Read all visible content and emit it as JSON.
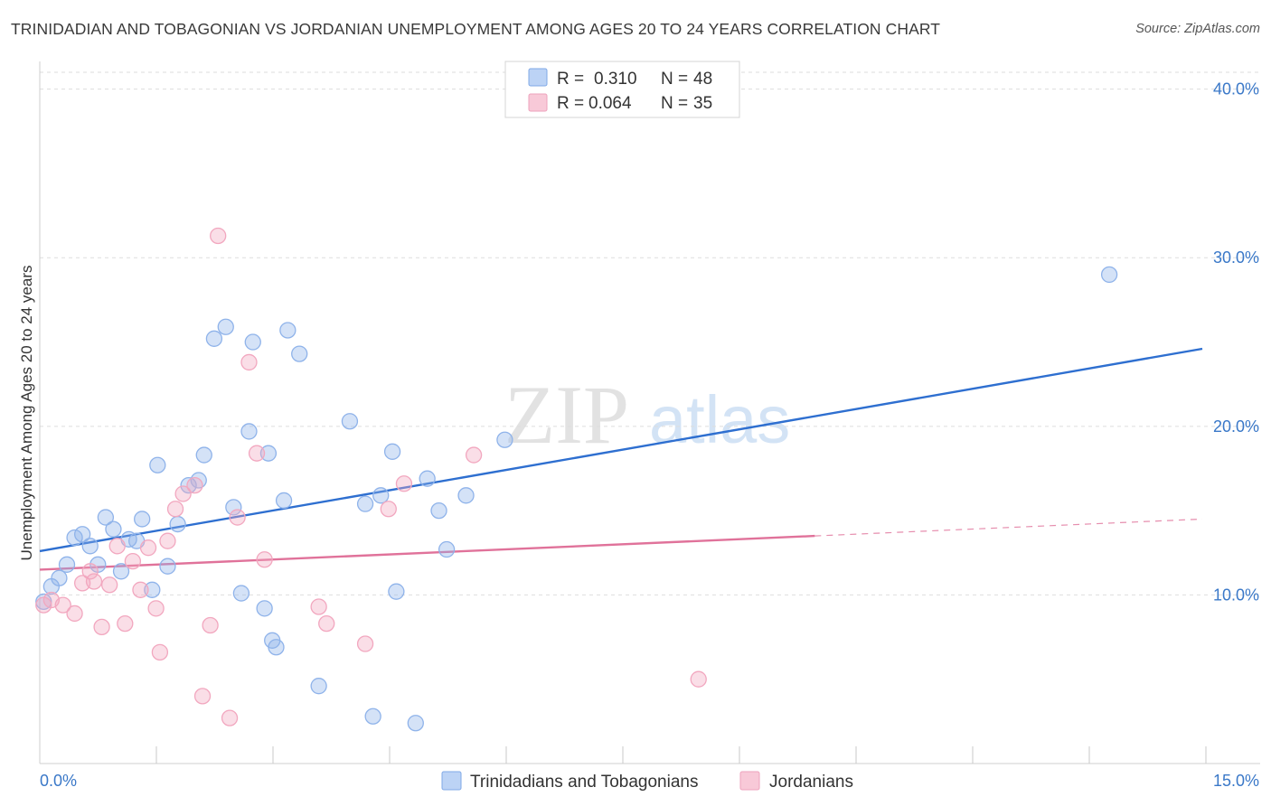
{
  "chart_data": {
    "type": "scatter",
    "title": "TRINIDADIAN AND TOBAGONIAN VS JORDANIAN UNEMPLOYMENT AMONG AGES 20 TO 24 YEARS CORRELATION CHART",
    "source": "Source: ZipAtlas.com",
    "watermark": {
      "zip": "ZIP",
      "atlas": "atlas"
    },
    "xlabel": "",
    "ylabel": "Unemployment Among Ages 20 to 24 years",
    "xlim": [
      0,
      15
    ],
    "ylim": [
      0,
      41
    ],
    "x_tick_labels": [
      {
        "value": 0,
        "label": "0.0%"
      },
      {
        "value": 15,
        "label": "15.0%"
      }
    ],
    "y_tick_labels": [
      {
        "value": 10,
        "label": "10.0%"
      },
      {
        "value": 20,
        "label": "20.0%"
      },
      {
        "value": 30,
        "label": "30.0%"
      },
      {
        "value": 40,
        "label": "40.0%"
      }
    ],
    "grid": true,
    "legend_position": "top-center",
    "stats": [
      {
        "r_label": "R =",
        "r_value": "0.310",
        "n_label": "N =",
        "n_value": "48"
      },
      {
        "r_label": "R =",
        "r_value": "0.064",
        "n_label": "N =",
        "n_value": "35"
      }
    ],
    "series": [
      {
        "name": "Trinidadians and Tobagonians",
        "color": "#8fb3ea",
        "line_color": "#2e6fd0",
        "trend": {
          "x_start": 0,
          "y_start": 12.6,
          "x_end": 15,
          "y_end": 24.6,
          "dashed_from_x": null
        },
        "points": [
          [
            0.05,
            9.6
          ],
          [
            0.15,
            10.5
          ],
          [
            0.25,
            11.0
          ],
          [
            0.35,
            11.8
          ],
          [
            0.45,
            13.4
          ],
          [
            0.55,
            13.6
          ],
          [
            0.65,
            12.9
          ],
          [
            0.75,
            11.8
          ],
          [
            0.85,
            14.6
          ],
          [
            0.95,
            13.9
          ],
          [
            1.05,
            11.4
          ],
          [
            1.15,
            13.3
          ],
          [
            1.25,
            13.2
          ],
          [
            1.32,
            14.5
          ],
          [
            1.45,
            10.3
          ],
          [
            1.52,
            17.7
          ],
          [
            1.65,
            11.7
          ],
          [
            1.78,
            14.2
          ],
          [
            1.92,
            16.5
          ],
          [
            2.05,
            16.8
          ],
          [
            2.12,
            18.3
          ],
          [
            2.25,
            25.2
          ],
          [
            2.4,
            25.9
          ],
          [
            2.5,
            15.2
          ],
          [
            2.6,
            10.1
          ],
          [
            2.7,
            19.7
          ],
          [
            2.75,
            25.0
          ],
          [
            2.9,
            9.2
          ],
          [
            2.95,
            18.4
          ],
          [
            3.0,
            7.3
          ],
          [
            3.05,
            6.9
          ],
          [
            3.15,
            15.6
          ],
          [
            3.2,
            25.7
          ],
          [
            3.35,
            24.3
          ],
          [
            3.6,
            4.6
          ],
          [
            4.0,
            20.3
          ],
          [
            4.2,
            15.4
          ],
          [
            4.3,
            2.8
          ],
          [
            4.4,
            15.9
          ],
          [
            4.55,
            18.5
          ],
          [
            4.6,
            10.2
          ],
          [
            4.85,
            2.4
          ],
          [
            5.0,
            16.9
          ],
          [
            5.15,
            15.0
          ],
          [
            5.25,
            12.7
          ],
          [
            5.5,
            15.9
          ],
          [
            6.0,
            19.2
          ],
          [
            13.8,
            29.0
          ]
        ]
      },
      {
        "name": "Jordanians",
        "color": "#f2a7bf",
        "line_color": "#e0729a",
        "trend": {
          "x_start": 0,
          "y_start": 11.5,
          "x_end": 15,
          "y_end": 14.5,
          "dashed_from_x": 10.0
        },
        "points": [
          [
            0.05,
            9.4
          ],
          [
            0.15,
            9.7
          ],
          [
            0.3,
            9.4
          ],
          [
            0.45,
            8.9
          ],
          [
            0.55,
            10.7
          ],
          [
            0.65,
            11.4
          ],
          [
            0.7,
            10.8
          ],
          [
            0.8,
            8.1
          ],
          [
            0.9,
            10.6
          ],
          [
            1.0,
            12.9
          ],
          [
            1.1,
            8.3
          ],
          [
            1.2,
            12.0
          ],
          [
            1.3,
            10.3
          ],
          [
            1.4,
            12.8
          ],
          [
            1.5,
            9.2
          ],
          [
            1.55,
            6.6
          ],
          [
            1.65,
            13.2
          ],
          [
            1.75,
            15.1
          ],
          [
            1.85,
            16.0
          ],
          [
            2.0,
            16.5
          ],
          [
            2.1,
            4.0
          ],
          [
            2.2,
            8.2
          ],
          [
            2.3,
            31.3
          ],
          [
            2.45,
            2.7
          ],
          [
            2.55,
            14.6
          ],
          [
            2.7,
            23.8
          ],
          [
            2.8,
            18.4
          ],
          [
            2.9,
            12.1
          ],
          [
            3.6,
            9.3
          ],
          [
            3.7,
            8.3
          ],
          [
            4.2,
            7.1
          ],
          [
            4.5,
            15.1
          ],
          [
            4.7,
            16.6
          ],
          [
            5.6,
            18.3
          ],
          [
            8.5,
            5.0
          ]
        ]
      }
    ]
  }
}
